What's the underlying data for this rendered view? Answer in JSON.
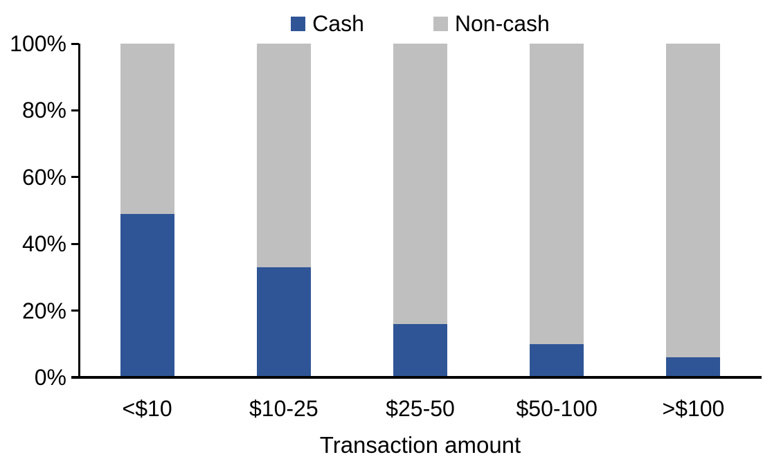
{
  "chart_data": {
    "type": "bar",
    "stacked": true,
    "title": "",
    "xlabel": "Transaction amount",
    "ylabel": "",
    "categories": [
      "<$10",
      "$10-25",
      "$25-50",
      "$50-100",
      ">$100"
    ],
    "series": [
      {
        "name": "Cash",
        "color": "#2F5596",
        "values": [
          49,
          33,
          16,
          10,
          6
        ]
      },
      {
        "name": "Non-cash",
        "color": "#BFBFBF",
        "values": [
          51,
          67,
          84,
          90,
          94
        ]
      }
    ],
    "ylim": [
      0,
      100
    ],
    "yticks": [
      "0%",
      "20%",
      "40%",
      "60%",
      "80%",
      "100%"
    ],
    "legend_position": "top",
    "grid": false,
    "colors": {
      "axis": "#000000",
      "text": "#000000",
      "background": "#FFFFFF"
    }
  }
}
